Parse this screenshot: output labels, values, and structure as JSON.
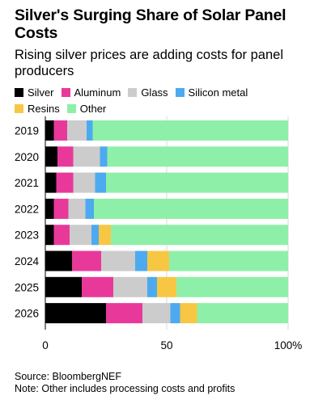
{
  "header": {
    "title": "Silver's Surging Share of Solar Panel Costs",
    "subtitle": "Rising silver prices are adding costs for panel producers"
  },
  "footer": {
    "source": "Source: BloombergNEF",
    "note": "Note: Other includes processing costs and profits"
  },
  "chart_data": {
    "type": "bar",
    "orientation": "horizontal",
    "stacked": true,
    "title": "Silver's Surging Share of Solar Panel Costs",
    "subtitle": "Rising silver prices are adding costs for panel producers",
    "categories": [
      "2019",
      "2020",
      "2021",
      "2022",
      "2023",
      "2024",
      "2025",
      "2026"
    ],
    "series": [
      {
        "name": "Silver",
        "color": "#000000",
        "values": [
          3.5,
          5,
          4.5,
          3.5,
          3.5,
          11,
          15,
          25
        ]
      },
      {
        "name": "Aluminum",
        "color": "#e8399b",
        "values": [
          5.5,
          6.5,
          7,
          6,
          6.5,
          12,
          13,
          15
        ]
      },
      {
        "name": "Glass",
        "color": "#cccccc",
        "values": [
          8,
          11,
          9,
          7,
          9,
          14,
          14,
          11.5
        ]
      },
      {
        "name": "Silicon metal",
        "color": "#4daaf0",
        "values": [
          2.5,
          3,
          4.5,
          3.5,
          3,
          5,
          4,
          4
        ]
      },
      {
        "name": "Resins",
        "color": "#f7c744",
        "values": [
          0,
          0,
          0,
          0,
          5,
          9,
          8,
          7
        ]
      },
      {
        "name": "Other",
        "color": "#8ef0a8",
        "values": [
          80.5,
          74.5,
          75,
          80,
          73,
          49,
          46,
          37.5
        ]
      }
    ],
    "xlim": [
      0,
      100
    ],
    "xticks": [
      "0",
      "50",
      "100%"
    ],
    "xtick_values": [
      0,
      50,
      100
    ],
    "grid": true,
    "legend_position": "top-left"
  }
}
